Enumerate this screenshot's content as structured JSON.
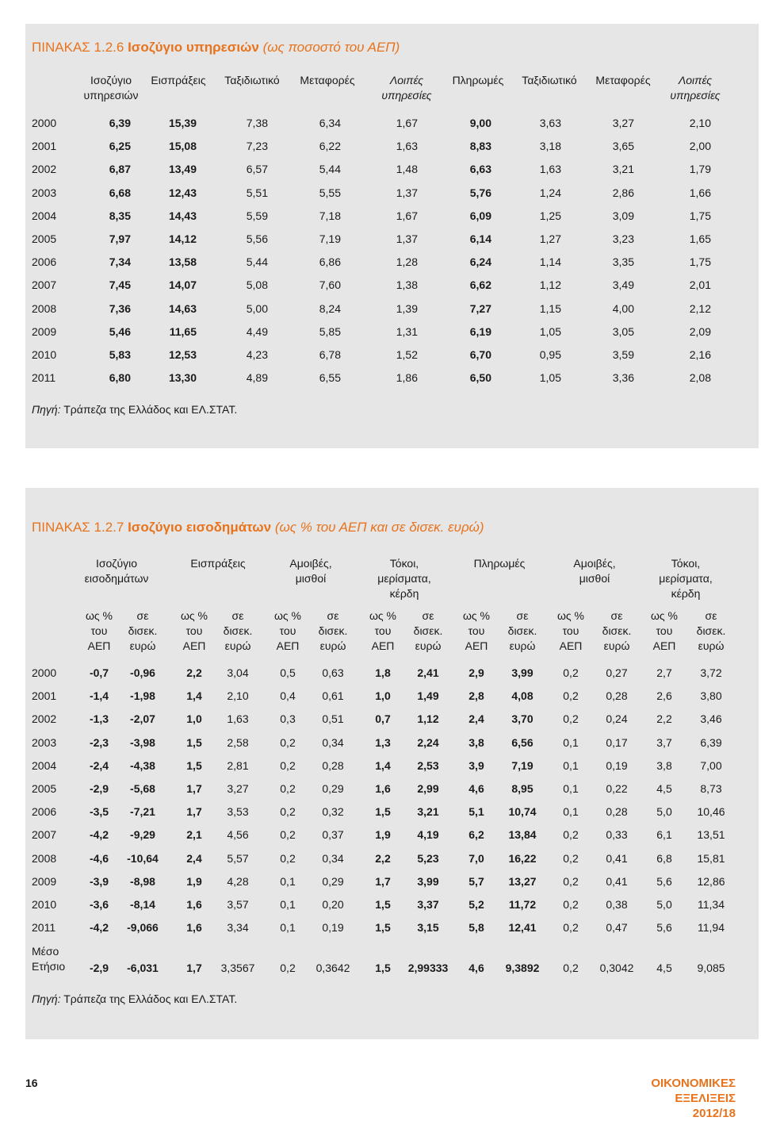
{
  "table1": {
    "title_label": "ΠΙΝΑΚΑΣ 1.2.6",
    "title_main": "Ισοζύγιο υπηρεσιών",
    "title_sub": "(ως ποσοστό του ΑΕΠ)",
    "headers": [
      "Ισοζύγιο\nυπηρεσιών",
      "Εισπράξεις",
      "Ταξιδιωτικό",
      "Μεταφορές",
      "Λοιπές\nυπηρεσίες",
      "Πληρωμές",
      "Ταξιδιωτικό",
      "Μεταφορές",
      "Λοιπές\nυπηρεσίες"
    ],
    "rows": [
      [
        "2000",
        "6,39",
        "15,39",
        "7,38",
        "6,34",
        "1,67",
        "9,00",
        "3,63",
        "3,27",
        "2,10"
      ],
      [
        "2001",
        "6,25",
        "15,08",
        "7,23",
        "6,22",
        "1,63",
        "8,83",
        "3,18",
        "3,65",
        "2,00"
      ],
      [
        "2002",
        "6,87",
        "13,49",
        "6,57",
        "5,44",
        "1,48",
        "6,63",
        "1,63",
        "3,21",
        "1,79"
      ],
      [
        "2003",
        "6,68",
        "12,43",
        "5,51",
        "5,55",
        "1,37",
        "5,76",
        "1,24",
        "2,86",
        "1,66"
      ],
      [
        "2004",
        "8,35",
        "14,43",
        "5,59",
        "7,18",
        "1,67",
        "6,09",
        "1,25",
        "3,09",
        "1,75"
      ],
      [
        "2005",
        "7,97",
        "14,12",
        "5,56",
        "7,19",
        "1,37",
        "6,14",
        "1,27",
        "3,23",
        "1,65"
      ],
      [
        "2006",
        "7,34",
        "13,58",
        "5,44",
        "6,86",
        "1,28",
        "6,24",
        "1,14",
        "3,35",
        "1,75"
      ],
      [
        "2007",
        "7,45",
        "14,07",
        "5,08",
        "7,60",
        "1,38",
        "6,62",
        "1,12",
        "3,49",
        "2,01"
      ],
      [
        "2008",
        "7,36",
        "14,63",
        "5,00",
        "8,24",
        "1,39",
        "7,27",
        "1,15",
        "4,00",
        "2,12"
      ],
      [
        "2009",
        "5,46",
        "11,65",
        "4,49",
        "5,85",
        "1,31",
        "6,19",
        "1,05",
        "3,05",
        "2,09"
      ],
      [
        "2010",
        "5,83",
        "12,53",
        "4,23",
        "6,78",
        "1,52",
        "6,70",
        "0,95",
        "3,59",
        "2,16"
      ],
      [
        "2011",
        "6,80",
        "13,30",
        "4,89",
        "6,55",
        "1,86",
        "6,50",
        "1,05",
        "3,36",
        "2,08"
      ]
    ],
    "source_label": "Πηγή:",
    "source_text": "Τράπεζα της Ελλάδος και ΕΛ.ΣΤΑΤ."
  },
  "table2": {
    "title_label": "ΠΙΝΑΚΑΣ 1.2.7",
    "title_main": "Ισοζύγιο εισοδημάτων",
    "title_sub": "(ως % του ΑΕΠ και σε δισεκ. ευρώ)",
    "groups": [
      "Ισοζύγιο\nεισοδημάτων",
      "Εισπράξεις",
      "Αμοιβές,\nμισθοί",
      "Τόκοι,\nμερίσματα,\nκέρδη",
      "Πληρωμές",
      "Αμοιβές,\nμισθοί",
      "Τόκοι,\nμερίσματα,\nκέρδη"
    ],
    "subheaders": [
      "ως %\nτου\nΑΕΠ",
      "σε\nδισεκ.\nευρώ",
      "ως %\nτου\nΑΕΠ",
      "σε\nδισεκ.\nευρώ",
      "ως %\nτου\nΑΕΠ",
      "σε\nδισεκ.\nευρώ",
      "ως %\nτου\nΑΕΠ",
      "σε\nδισεκ.\nευρώ",
      "ως %\nτου\nΑΕΠ",
      "σε\nδισεκ.\nευρώ",
      "ως %\nτου\nΑΕΠ",
      "σε\nδισεκ.\nευρώ",
      "ως %\nτου\nΑΕΠ",
      "σε\nδισεκ.\nευρώ"
    ],
    "rows": [
      [
        "2000",
        "-0,7",
        "-0,96",
        "2,2",
        "3,04",
        "0,5",
        "0,63",
        "1,8",
        "2,41",
        "2,9",
        "3,99",
        "0,2",
        "0,27",
        "2,7",
        "3,72"
      ],
      [
        "2001",
        "-1,4",
        "-1,98",
        "1,4",
        "2,10",
        "0,4",
        "0,61",
        "1,0",
        "1,49",
        "2,8",
        "4,08",
        "0,2",
        "0,28",
        "2,6",
        "3,80"
      ],
      [
        "2002",
        "-1,3",
        "-2,07",
        "1,0",
        "1,63",
        "0,3",
        "0,51",
        "0,7",
        "1,12",
        "2,4",
        "3,70",
        "0,2",
        "0,24",
        "2,2",
        "3,46"
      ],
      [
        "2003",
        "-2,3",
        "-3,98",
        "1,5",
        "2,58",
        "0,2",
        "0,34",
        "1,3",
        "2,24",
        "3,8",
        "6,56",
        "0,1",
        "0,17",
        "3,7",
        "6,39"
      ],
      [
        "2004",
        "-2,4",
        "-4,38",
        "1,5",
        "2,81",
        "0,2",
        "0,28",
        "1,4",
        "2,53",
        "3,9",
        "7,19",
        "0,1",
        "0,19",
        "3,8",
        "7,00"
      ],
      [
        "2005",
        "-2,9",
        "-5,68",
        "1,7",
        "3,27",
        "0,2",
        "0,29",
        "1,6",
        "2,99",
        "4,6",
        "8,95",
        "0,1",
        "0,22",
        "4,5",
        "8,73"
      ],
      [
        "2006",
        "-3,5",
        "-7,21",
        "1,7",
        "3,53",
        "0,2",
        "0,32",
        "1,5",
        "3,21",
        "5,1",
        "10,74",
        "0,1",
        "0,28",
        "5,0",
        "10,46"
      ],
      [
        "2007",
        "-4,2",
        "-9,29",
        "2,1",
        "4,56",
        "0,2",
        "0,37",
        "1,9",
        "4,19",
        "6,2",
        "13,84",
        "0,2",
        "0,33",
        "6,1",
        "13,51"
      ],
      [
        "2008",
        "-4,6",
        "-10,64",
        "2,4",
        "5,57",
        "0,2",
        "0,34",
        "2,2",
        "5,23",
        "7,0",
        "16,22",
        "0,2",
        "0,41",
        "6,8",
        "15,81"
      ],
      [
        "2009",
        "-3,9",
        "-8,98",
        "1,9",
        "4,28",
        "0,1",
        "0,29",
        "1,7",
        "3,99",
        "5,7",
        "13,27",
        "0,2",
        "0,41",
        "5,6",
        "12,86"
      ],
      [
        "2010",
        "-3,6",
        "-8,14",
        "1,6",
        "3,57",
        "0,1",
        "0,20",
        "1,5",
        "3,37",
        "5,2",
        "11,72",
        "0,2",
        "0,38",
        "5,0",
        "11,34"
      ],
      [
        "2011",
        "-4,2",
        "-9,066",
        "1,6",
        "3,34",
        "0,1",
        "0,19",
        "1,5",
        "3,15",
        "5,8",
        "12,41",
        "0,2",
        "0,47",
        "5,6",
        "11,94"
      ],
      [
        "Μέσο\nΕτήσιο",
        "-2,9",
        "-6,031",
        "1,7",
        "3,3567",
        "0,2",
        "0,3642",
        "1,5",
        "2,99333",
        "4,6",
        "9,3892",
        "0,2",
        "0,3042",
        "4,5",
        "9,085"
      ]
    ],
    "source_label": "Πηγή:",
    "source_text": "Τράπεζα της Ελλάδος και ΕΛ.ΣΤΑΤ."
  },
  "footer": {
    "page_number": "16",
    "publication": "ΟΙΚΟΝΟΜΙΚΕΣ ΕΞΕΛΙΞΕΙΣ 2012/18"
  }
}
